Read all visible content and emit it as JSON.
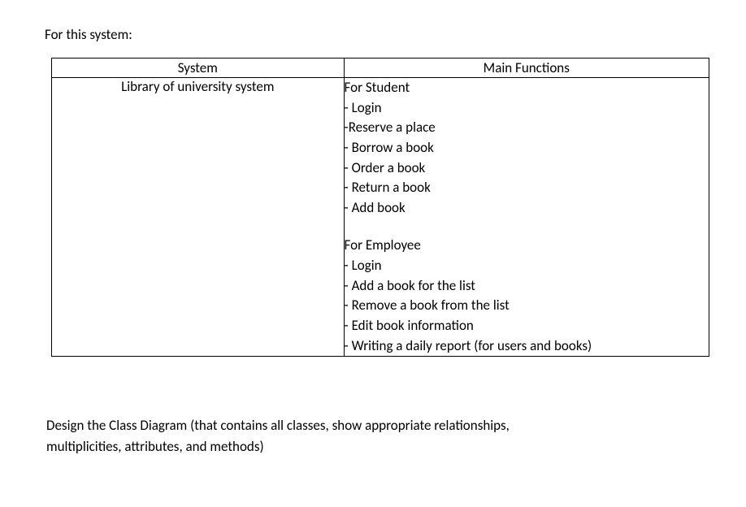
{
  "intro": "For this system:",
  "table": {
    "headers": {
      "system": "System",
      "functions": "Main Functions"
    },
    "body": {
      "system_name": "Library of university system",
      "student_block": {
        "title": "For Student",
        "items": [
          "- Login",
          "-Reserve a place",
          "- Borrow a book",
          "- Order a book",
          "- Return a book",
          "- Add book"
        ]
      },
      "employee_block": {
        "title": "For Employee",
        "items": [
          "- Login",
          "- Add a book for the list",
          "- Remove a book from the list",
          "- Edit book information",
          "- Writing a daily report (for users and books)"
        ]
      }
    }
  },
  "closing_line1": "Design the Class Diagram (that contains all classes, show appropriate relationships,",
  "closing_line2": "multiplicities, attributes, and methods)"
}
